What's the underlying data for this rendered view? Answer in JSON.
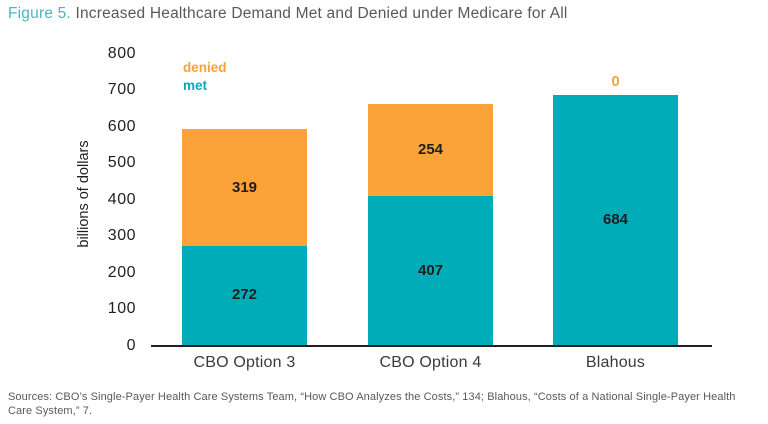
{
  "title": {
    "figure_label": "Figure 5.",
    "text": " Increased Healthcare Demand Met and Denied under Medicare for All"
  },
  "legend": {
    "denied_label": "denied",
    "met_label": "met"
  },
  "colors": {
    "met": "#00acb8",
    "denied": "#fba338",
    "figure_label_teal": "#45b7c2",
    "text_gray": "#58595b",
    "text_dark": "#231f20"
  },
  "chart_data": {
    "type": "bar",
    "stacked": true,
    "title": "Increased Healthcare Demand Met and Denied under Medicare for All",
    "categories": [
      "CBO Option 3",
      "CBO Option 4",
      "Blahous"
    ],
    "series": [
      {
        "name": "met",
        "color": "#00acb8",
        "values": [
          272,
          407,
          684
        ]
      },
      {
        "name": "denied",
        "color": "#fba338",
        "values": [
          319,
          254,
          0
        ]
      }
    ],
    "xlabel": "",
    "ylabel": "billions of dollars",
    "yticks": [
      0,
      100,
      200,
      300,
      400,
      500,
      600,
      700,
      800
    ],
    "ylim": [
      0,
      800
    ],
    "grid": false,
    "legend_position": "top-left",
    "bar_value_labels": true
  },
  "sources": {
    "lines": [
      "Sources: CBO’s Single-Payer Health Care Systems Team, “How CBO Analyzes the Costs,” 134; Blahous, “Costs of a National Single-Payer Health",
      "Care System,” 7."
    ]
  }
}
